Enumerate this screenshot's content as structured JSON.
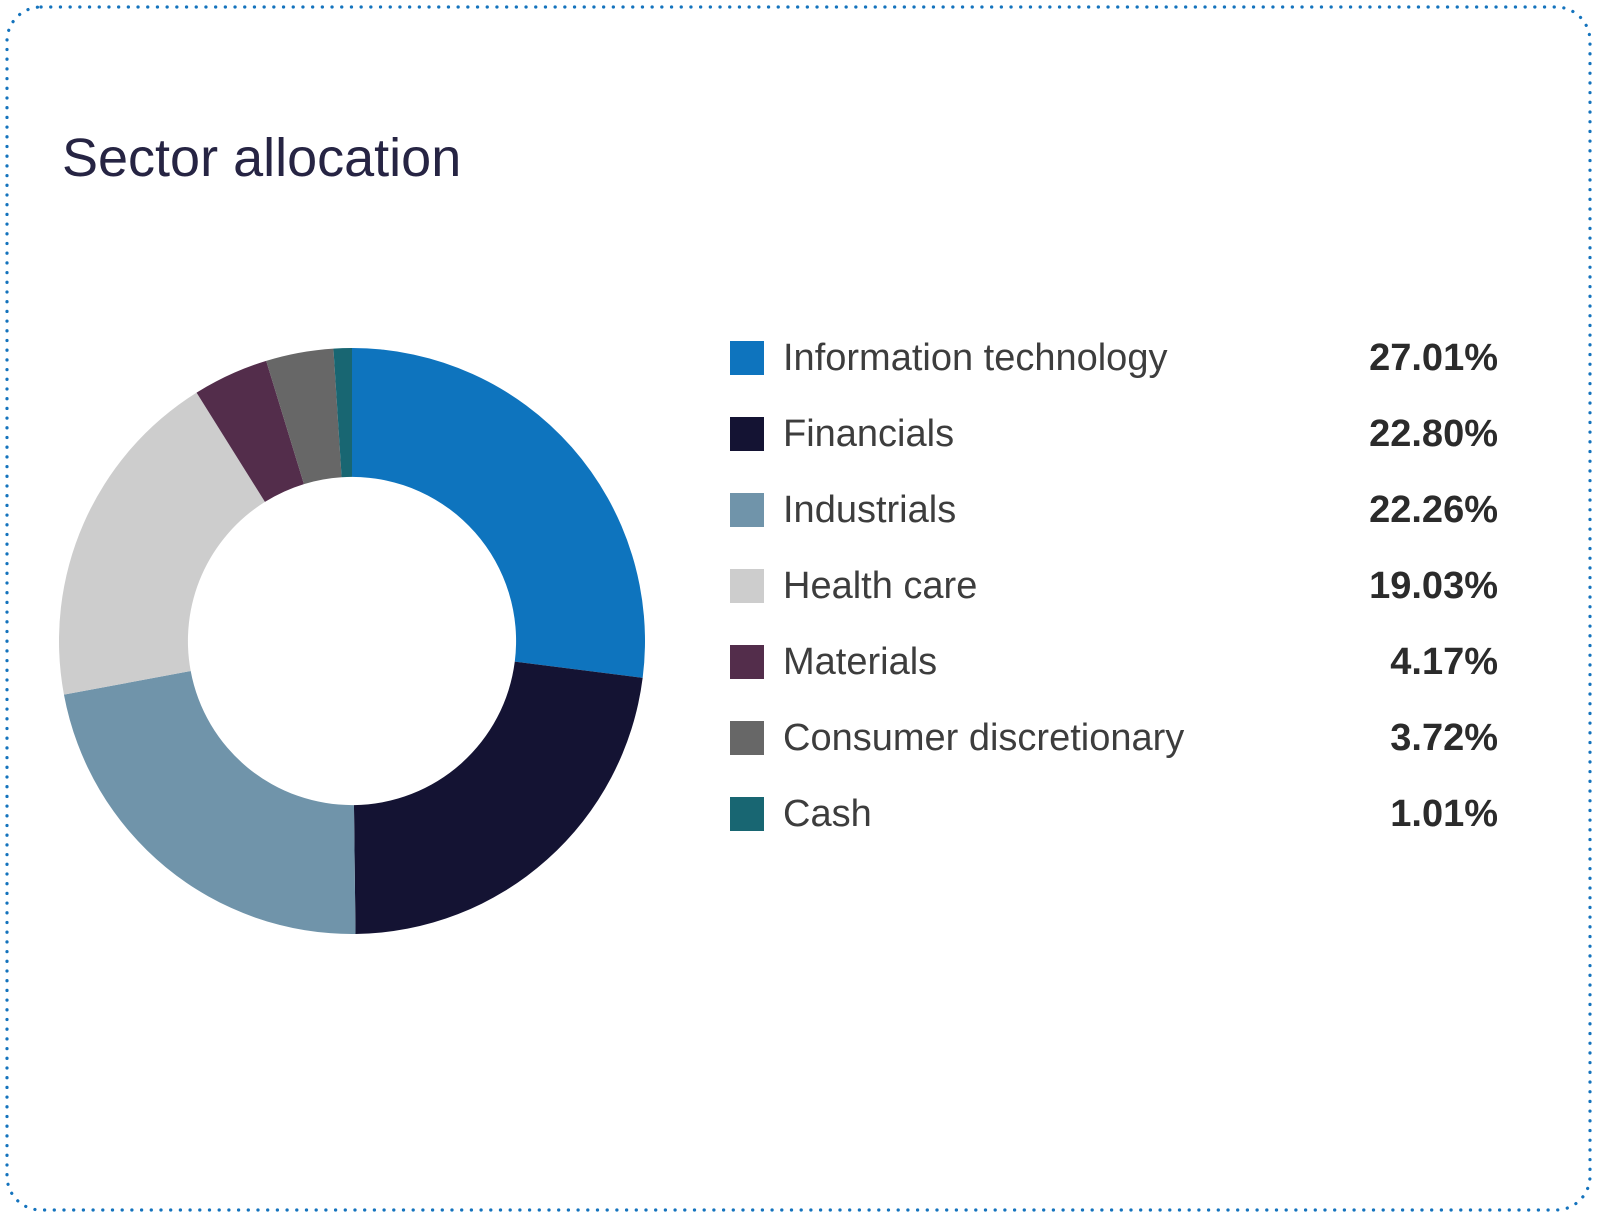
{
  "card": {
    "title": "Sector allocation",
    "border_color": "#1473bd",
    "background_color": "#ffffff",
    "title_color": "#262443"
  },
  "chart_data": {
    "type": "pie",
    "title": "Sector allocation",
    "donut": true,
    "inner_radius_ratio": 0.56,
    "start_angle_deg": 0,
    "direction": "clockwise",
    "legend_position": "right",
    "value_format": "percent",
    "categories": [
      "Information technology",
      "Financials",
      "Industrials",
      "Health care",
      "Materials",
      "Consumer discretionary",
      "Cash"
    ],
    "values": [
      27.01,
      22.8,
      22.26,
      19.03,
      4.17,
      3.72,
      1.01
    ],
    "colors": [
      "#0e74be",
      "#141333",
      "#7094aa",
      "#cdcdcd",
      "#532d4b",
      "#676767",
      "#186672"
    ]
  },
  "legend": {
    "items": [
      {
        "label": "Information technology",
        "value": "27.01%",
        "color": "#0e74be"
      },
      {
        "label": "Financials",
        "value": "22.80%",
        "color": "#141333"
      },
      {
        "label": "Industrials",
        "value": "22.26%",
        "color": "#7094aa"
      },
      {
        "label": "Health care",
        "value": "19.03%",
        "color": "#cdcdcd"
      },
      {
        "label": "Materials",
        "value": "4.17%",
        "color": "#532d4b"
      },
      {
        "label": "Consumer discretionary",
        "value": "3.72%",
        "color": "#676767"
      },
      {
        "label": "Cash",
        "value": "1.01%",
        "color": "#186672"
      }
    ]
  }
}
